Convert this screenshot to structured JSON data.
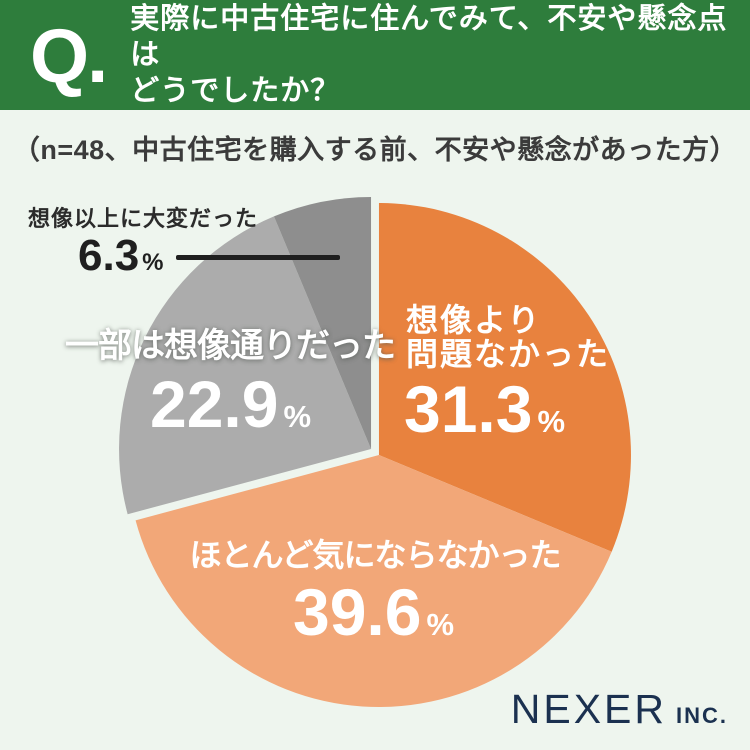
{
  "header": {
    "q_label": "Q.",
    "title_line1": "実際に中古住宅に住んでみて、不安や懸念点は",
    "title_line2": "どうでしたか？",
    "bg_color": "#2e7d3c"
  },
  "subtitle": "（n=48、中古住宅を購入する前、不安や懸念があった方）",
  "chart_data": {
    "type": "pie",
    "title": "実際に中古住宅に住んでみて、不安や懸念点はどうでしたか？",
    "sample_note": "n=48、中古住宅を購入する前、不安や懸念があった方",
    "start_angle_deg": 0,
    "direction": "clockwise",
    "exploded": true,
    "background_color": "#eef5ee",
    "segments": [
      {
        "label": "想像より問題なかった",
        "value": 31.3,
        "color": "#e8823e",
        "group": "warm"
      },
      {
        "label": "ほとんど気にならなかった",
        "value": 39.6,
        "color": "#f2a778",
        "group": "warm"
      },
      {
        "label": "一部は想像通りだった",
        "value": 22.9,
        "color": "#acacac",
        "group": "gray"
      },
      {
        "label": "想像以上に大変だった",
        "value": 6.3,
        "color": "#8e8e8e",
        "group": "gray"
      }
    ]
  },
  "labels": {
    "seg1_line1": "想像より",
    "seg1_line2": "問題なかった",
    "percent": "%"
  },
  "footer": {
    "brand": "NEXER",
    "brand_suffix": "INC."
  }
}
